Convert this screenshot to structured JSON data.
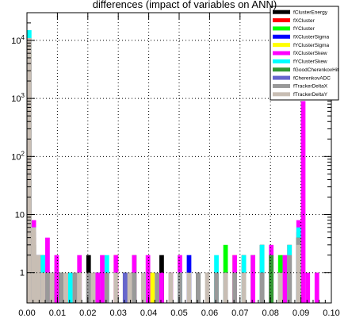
{
  "chart_data": {
    "type": "bar",
    "title": "differences (impact of variables on ANN)",
    "xlabel": "",
    "ylabel": "",
    "xlim": [
      0,
      0.1
    ],
    "ylim": [
      0.3,
      30000
    ],
    "yscale": "log",
    "grid": true,
    "legend_position": "top-right",
    "x_ticks": [
      "0.00",
      "0.01",
      "0.02",
      "0.03",
      "0.04",
      "0.05",
      "0.06",
      "0.07",
      "0.08",
      "0.09",
      "0.10"
    ],
    "y_ticks": [
      {
        "value": 1,
        "base": "1",
        "exp": ""
      },
      {
        "value": 10,
        "base": "10",
        "exp": ""
      },
      {
        "value": 100,
        "base": "10",
        "exp": "2"
      },
      {
        "value": 1000,
        "base": "10",
        "exp": "3"
      },
      {
        "value": 10000,
        "base": "10",
        "exp": "4"
      }
    ],
    "bin_width": 0.0015,
    "series": [
      {
        "name": "fClusterEnergy",
        "color": "#000000",
        "bins": [
          [
            0.0,
            9000
          ],
          [
            0.0015,
            3
          ],
          [
            0.003,
            2
          ],
          [
            0.009,
            1
          ],
          [
            0.0195,
            2
          ],
          [
            0.0315,
            1
          ],
          [
            0.0435,
            2
          ],
          [
            0.0765,
            3
          ],
          [
            0.0795,
            2
          ],
          [
            0.0885,
            4
          ]
        ]
      },
      {
        "name": "fXCluster",
        "color": "#ff0000",
        "bins": [
          [
            0.0,
            8000
          ],
          [
            0.0015,
            4
          ],
          [
            0.0045,
            2
          ],
          [
            0.0135,
            1
          ],
          [
            0.0285,
            2
          ],
          [
            0.0705,
            2
          ],
          [
            0.0855,
            3
          ],
          [
            0.0885,
            5
          ]
        ]
      },
      {
        "name": "fYCluster",
        "color": "#00ff00",
        "bins": [
          [
            0.0,
            8500
          ],
          [
            0.0015,
            3
          ],
          [
            0.0075,
            1
          ],
          [
            0.0345,
            2
          ],
          [
            0.0645,
            3
          ],
          [
            0.0735,
            2
          ],
          [
            0.0825,
            2
          ],
          [
            0.0885,
            4
          ]
        ]
      },
      {
        "name": "fXClusterSigma",
        "color": "#0000ff",
        "bins": [
          [
            0.0,
            7000
          ],
          [
            0.0015,
            5
          ],
          [
            0.003,
            2
          ],
          [
            0.0225,
            1
          ],
          [
            0.0525,
            2
          ],
          [
            0.0885,
            3
          ]
        ]
      },
      {
        "name": "fYClusterSigma",
        "color": "#ffff00",
        "bins": [
          [
            0.0,
            7500
          ],
          [
            0.0015,
            4
          ],
          [
            0.006,
            1
          ],
          [
            0.0405,
            1
          ],
          [
            0.0675,
            2
          ],
          [
            0.0885,
            3
          ]
        ]
      },
      {
        "name": "fXClusterSkew",
        "color": "#ff00ff",
        "bins": [
          [
            0.0,
            9500
          ],
          [
            0.0015,
            8
          ],
          [
            0.006,
            4
          ],
          [
            0.009,
            2
          ],
          [
            0.0165,
            2
          ],
          [
            0.0225,
            1
          ],
          [
            0.024,
            2
          ],
          [
            0.0285,
            2
          ],
          [
            0.0345,
            2
          ],
          [
            0.0375,
            1
          ],
          [
            0.039,
            2
          ],
          [
            0.0435,
            1
          ],
          [
            0.0465,
            1
          ],
          [
            0.0495,
            2
          ],
          [
            0.0555,
            1
          ],
          [
            0.0675,
            2
          ],
          [
            0.0735,
            2
          ],
          [
            0.0795,
            3
          ],
          [
            0.084,
            2
          ],
          [
            0.0885,
            8
          ],
          [
            0.09,
            900
          ],
          [
            0.0915,
            1
          ],
          [
            0.0945,
            1
          ]
        ]
      },
      {
        "name": "fYClusterSkew",
        "color": "#00ffff",
        "bins": [
          [
            0.0,
            15000
          ],
          [
            0.0015,
            6
          ],
          [
            0.0045,
            2
          ],
          [
            0.0135,
            1
          ],
          [
            0.0255,
            2
          ],
          [
            0.0375,
            1
          ],
          [
            0.0495,
            1
          ],
          [
            0.0615,
            2
          ],
          [
            0.0705,
            2
          ],
          [
            0.0765,
            3
          ],
          [
            0.0855,
            3
          ],
          [
            0.0885,
            6
          ]
        ]
      },
      {
        "name": "fGoodCherenkovHit",
        "color": "#339933",
        "bins": [
          [
            0.0,
            6000
          ],
          [
            0.0015,
            3
          ],
          [
            0.0105,
            1
          ],
          [
            0.0555,
            1
          ],
          [
            0.0795,
            2
          ],
          [
            0.0885,
            4
          ]
        ]
      },
      {
        "name": "fCherenkovADC",
        "color": "#6666cc",
        "bins": [
          [
            0.0,
            5000
          ],
          [
            0.0015,
            4
          ],
          [
            0.0075,
            1
          ],
          [
            0.0315,
            1
          ],
          [
            0.0645,
            1
          ],
          [
            0.0885,
            3
          ]
        ]
      },
      {
        "name": "fTrackerDeltaX",
        "color": "#999999",
        "bins": [
          [
            0.0,
            10000
          ],
          [
            0.0015,
            5
          ],
          [
            0.003,
            2
          ],
          [
            0.006,
            1
          ],
          [
            0.0105,
            1
          ],
          [
            0.015,
            1
          ],
          [
            0.0195,
            1
          ],
          [
            0.0255,
            1
          ],
          [
            0.0345,
            1
          ],
          [
            0.042,
            1
          ],
          [
            0.0495,
            1
          ],
          [
            0.0555,
            1
          ],
          [
            0.0615,
            1
          ],
          [
            0.0675,
            1
          ],
          [
            0.0765,
            1
          ],
          [
            0.0855,
            2
          ],
          [
            0.0885,
            4
          ]
        ]
      },
      {
        "name": "fTrackerDeltaY",
        "color": "#c8beb4",
        "bins": [
          [
            0.0,
            11000
          ],
          [
            0.0015,
            6
          ],
          [
            0.003,
            2
          ],
          [
            0.0045,
            1
          ],
          [
            0.0075,
            1
          ],
          [
            0.012,
            1
          ],
          [
            0.0165,
            1
          ],
          [
            0.021,
            1
          ],
          [
            0.0285,
            1
          ],
          [
            0.033,
            1
          ],
          [
            0.0375,
            1
          ],
          [
            0.0465,
            1
          ],
          [
            0.0525,
            1
          ],
          [
            0.0585,
            1
          ],
          [
            0.0645,
            1
          ],
          [
            0.0705,
            1
          ],
          [
            0.0825,
            1
          ],
          [
            0.0885,
            3
          ]
        ]
      }
    ]
  }
}
